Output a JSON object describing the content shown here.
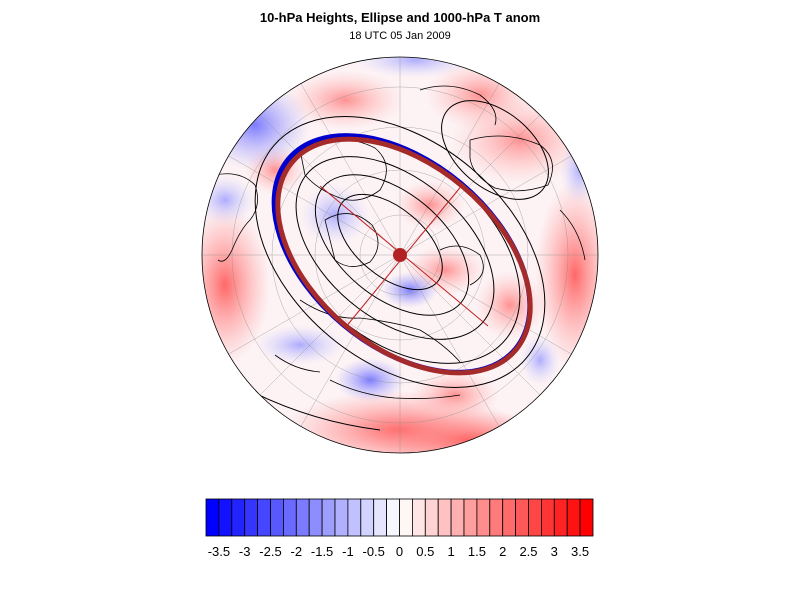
{
  "title": "10-hPa Heights, Ellipse and 1000-hPa T anom",
  "subtitle": "18 UTC 05 Jan 2009",
  "colorbar": {
    "min": -3.75,
    "max": 3.75,
    "step": 0.25,
    "tick_labels": [
      "-3.5",
      "-3",
      "-2.5",
      "-2",
      "-1.5",
      "-1",
      "-0.5",
      "0",
      "0.5",
      "1",
      "1.5",
      "2",
      "2.5",
      "3",
      "3.5"
    ],
    "colors": {
      "negative_end": "#0000ff",
      "positive_end": "#ff0000",
      "neutral": "#ffffff"
    }
  },
  "map": {
    "projection": "orthographic-polar",
    "ellipse_color_primary": "#a52a2a",
    "ellipse_color_secondary": "#0000cc",
    "center_marker_color": "#b22222",
    "contour_color": "#000000"
  }
}
